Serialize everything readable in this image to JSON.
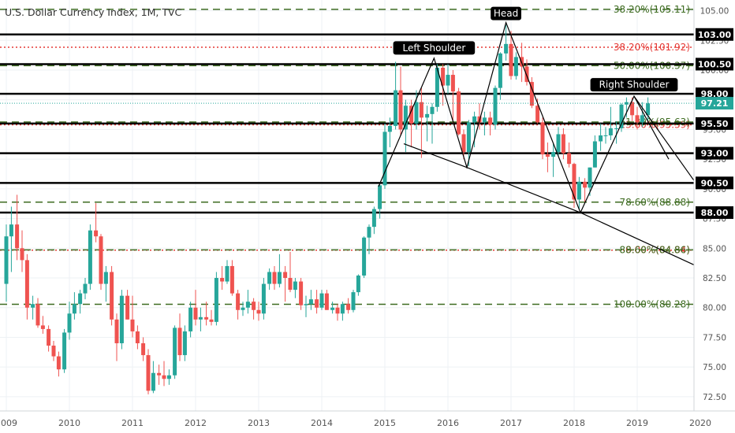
{
  "header": {
    "title": "U.S. Dollar Currency Index, 1M, TVC"
  },
  "chart_data": {
    "type": "candlestick",
    "title": "U.S. Dollar Currency Index, 1M, TVC",
    "x_range": [
      2009.0,
      2020.0
    ],
    "ylim": [
      71.3,
      105.9
    ],
    "x_ticks": [
      "2009",
      "2010",
      "2011",
      "2012",
      "2013",
      "2014",
      "2015",
      "2016",
      "2017",
      "2018",
      "2019",
      "2020"
    ],
    "y_ticks": [
      "72.50",
      "75.00",
      "77.50",
      "80.00",
      "82.50",
      "85.00",
      "87.50",
      "90.00",
      "92.50",
      "95.00",
      "97.50",
      "100.00",
      "102.50",
      "105.00"
    ],
    "current_price": "97.21",
    "colors": {
      "up": "#26a69a",
      "down": "#ef5350",
      "fib_green": "#3d6b20",
      "fib_red": "#e53935",
      "price_badge": "#26a69a",
      "level_badge": "#000000"
    },
    "levels": [
      {
        "label": "103.00",
        "value": 103.0
      },
      {
        "label": "100.50",
        "value": 100.5
      },
      {
        "label": "98.00",
        "value": 98.0
      },
      {
        "label": "95.50",
        "value": 95.5
      },
      {
        "label": "93.00",
        "value": 93.0
      },
      {
        "label": "90.50",
        "value": 90.5
      },
      {
        "label": "88.00",
        "value": 88.0
      }
    ],
    "fib_levels": [
      {
        "label": "38.20%(105.11)",
        "value": 105.11,
        "color": "green",
        "style": "dashed"
      },
      {
        "label": "38.20%(101.92)",
        "value": 101.92,
        "color": "red",
        "style": "dotted"
      },
      {
        "label": "50.00%(100.37)",
        "value": 100.37,
        "color": "green",
        "style": "dashed"
      },
      {
        "label": "23.60%(95.39)",
        "value": 95.39,
        "color": "red",
        "style": "dotted"
      },
      {
        "label": "61.80%(95.63)",
        "value": 95.63,
        "color": "green",
        "style": "dashed"
      },
      {
        "label": "78.60%(88.88)",
        "value": 88.88,
        "color": "green",
        "style": "dashed"
      },
      {
        "label": "0.00%(84.84)",
        "value": 84.84,
        "color": "red",
        "style": "dotted"
      },
      {
        "label": "88.60%(84.86)",
        "value": 84.86,
        "color": "green",
        "style": "dashed"
      },
      {
        "label": "100.00%(80.28)",
        "value": 80.28,
        "color": "green",
        "style": "dashed"
      }
    ],
    "annotations": [
      {
        "label": "Left Shoulder",
        "x": 2015.78,
        "y": 101.1
      },
      {
        "label": "Head",
        "x": 2016.92,
        "y": 104.0
      },
      {
        "label": "Right Shoulder",
        "x": 2018.95,
        "y": 98.0
      }
    ],
    "pattern_line": [
      [
        2014.9,
        90.2
      ],
      [
        2015.78,
        101.0
      ],
      [
        2016.3,
        91.8
      ],
      [
        2016.92,
        104.0
      ],
      [
        2018.1,
        88.0
      ],
      [
        2018.95,
        97.8
      ],
      [
        2019.5,
        92.5
      ]
    ],
    "neckline": [
      [
        2015.3,
        93.8
      ],
      [
        2016.3,
        91.8
      ],
      [
        2018.1,
        88.0
      ],
      [
        2020.0,
        83.6
      ]
    ],
    "right_line": [
      [
        2018.95,
        97.8
      ],
      [
        2020.0,
        90.7
      ]
    ],
    "candles": [
      {
        "t": 2009.0,
        "o": 82.0,
        "h": 87.0,
        "l": 80.5,
        "c": 86.0
      },
      {
        "t": 2009.08,
        "o": 86.0,
        "h": 88.5,
        "l": 83.0,
        "c": 87.0
      },
      {
        "t": 2009.17,
        "o": 87.0,
        "h": 89.5,
        "l": 84.0,
        "c": 85.0
      },
      {
        "t": 2009.25,
        "o": 85.0,
        "h": 86.5,
        "l": 83.0,
        "c": 84.0
      },
      {
        "t": 2009.33,
        "o": 84.0,
        "h": 84.5,
        "l": 79.0,
        "c": 80.0
      },
      {
        "t": 2009.42,
        "o": 80.0,
        "h": 81.0,
        "l": 79.0,
        "c": 80.3
      },
      {
        "t": 2009.5,
        "o": 80.3,
        "h": 80.8,
        "l": 78.3,
        "c": 78.5
      },
      {
        "t": 2009.58,
        "o": 78.5,
        "h": 79.3,
        "l": 77.8,
        "c": 78.2
      },
      {
        "t": 2009.67,
        "o": 78.2,
        "h": 78.5,
        "l": 76.3,
        "c": 76.8
      },
      {
        "t": 2009.75,
        "o": 76.8,
        "h": 77.2,
        "l": 75.5,
        "c": 75.9
      },
      {
        "t": 2009.83,
        "o": 75.9,
        "h": 76.3,
        "l": 74.2,
        "c": 74.8
      },
      {
        "t": 2009.92,
        "o": 74.8,
        "h": 78.2,
        "l": 74.5,
        "c": 77.9
      },
      {
        "t": 2010.0,
        "o": 77.9,
        "h": 80.5,
        "l": 77.3,
        "c": 79.5
      },
      {
        "t": 2010.08,
        "o": 79.5,
        "h": 81.3,
        "l": 79.0,
        "c": 80.3
      },
      {
        "t": 2010.17,
        "o": 80.3,
        "h": 81.5,
        "l": 79.5,
        "c": 81.2
      },
      {
        "t": 2010.25,
        "o": 81.2,
        "h": 82.5,
        "l": 80.7,
        "c": 82.0
      },
      {
        "t": 2010.33,
        "o": 82.0,
        "h": 87.0,
        "l": 81.5,
        "c": 86.5
      },
      {
        "t": 2010.42,
        "o": 86.5,
        "h": 88.8,
        "l": 85.5,
        "c": 86.0
      },
      {
        "t": 2010.5,
        "o": 86.0,
        "h": 86.2,
        "l": 81.5,
        "c": 82.0
      },
      {
        "t": 2010.58,
        "o": 82.0,
        "h": 83.5,
        "l": 80.5,
        "c": 83.0
      },
      {
        "t": 2010.67,
        "o": 83.0,
        "h": 83.5,
        "l": 78.5,
        "c": 79.0
      },
      {
        "t": 2010.75,
        "o": 79.0,
        "h": 79.5,
        "l": 75.5,
        "c": 77.0
      },
      {
        "t": 2010.83,
        "o": 77.0,
        "h": 81.5,
        "l": 76.5,
        "c": 81.0
      },
      {
        "t": 2010.92,
        "o": 81.0,
        "h": 81.5,
        "l": 79.0,
        "c": 79.0
      },
      {
        "t": 2011.0,
        "o": 79.0,
        "h": 81.0,
        "l": 77.5,
        "c": 78.0
      },
      {
        "t": 2011.08,
        "o": 78.0,
        "h": 78.5,
        "l": 76.5,
        "c": 77.0
      },
      {
        "t": 2011.17,
        "o": 77.0,
        "h": 77.5,
        "l": 75.5,
        "c": 76.0
      },
      {
        "t": 2011.25,
        "o": 76.0,
        "h": 76.5,
        "l": 72.7,
        "c": 73.0
      },
      {
        "t": 2011.33,
        "o": 73.0,
        "h": 75.5,
        "l": 72.8,
        "c": 74.5
      },
      {
        "t": 2011.42,
        "o": 74.5,
        "h": 75.2,
        "l": 73.5,
        "c": 74.3
      },
      {
        "t": 2011.5,
        "o": 74.3,
        "h": 75.5,
        "l": 73.4,
        "c": 74.0
      },
      {
        "t": 2011.58,
        "o": 74.0,
        "h": 74.8,
        "l": 73.5,
        "c": 74.3
      },
      {
        "t": 2011.67,
        "o": 74.3,
        "h": 78.5,
        "l": 74.0,
        "c": 78.3
      },
      {
        "t": 2011.75,
        "o": 78.3,
        "h": 79.5,
        "l": 75.5,
        "c": 76.0
      },
      {
        "t": 2011.83,
        "o": 76.0,
        "h": 78.5,
        "l": 75.5,
        "c": 78.0
      },
      {
        "t": 2011.92,
        "o": 78.0,
        "h": 80.5,
        "l": 77.5,
        "c": 80.0
      },
      {
        "t": 2012.0,
        "o": 80.0,
        "h": 81.5,
        "l": 78.5,
        "c": 79.0
      },
      {
        "t": 2012.08,
        "o": 79.0,
        "h": 80.0,
        "l": 78.0,
        "c": 79.2
      },
      {
        "t": 2012.17,
        "o": 79.2,
        "h": 80.5,
        "l": 78.5,
        "c": 79.0
      },
      {
        "t": 2012.25,
        "o": 79.0,
        "h": 79.8,
        "l": 78.5,
        "c": 78.8
      },
      {
        "t": 2012.33,
        "o": 78.8,
        "h": 83.0,
        "l": 78.5,
        "c": 82.5
      },
      {
        "t": 2012.42,
        "o": 82.5,
        "h": 83.5,
        "l": 81.5,
        "c": 82.2
      },
      {
        "t": 2012.5,
        "o": 82.2,
        "h": 84.0,
        "l": 82.0,
        "c": 83.5
      },
      {
        "t": 2012.58,
        "o": 83.5,
        "h": 84.0,
        "l": 81.0,
        "c": 81.2
      },
      {
        "t": 2012.67,
        "o": 81.2,
        "h": 81.5,
        "l": 79.0,
        "c": 79.8
      },
      {
        "t": 2012.75,
        "o": 79.8,
        "h": 80.5,
        "l": 79.3,
        "c": 80.0
      },
      {
        "t": 2012.83,
        "o": 80.0,
        "h": 81.5,
        "l": 79.5,
        "c": 80.5
      },
      {
        "t": 2012.92,
        "o": 80.5,
        "h": 80.8,
        "l": 79.0,
        "c": 79.8
      },
      {
        "t": 2013.0,
        "o": 79.8,
        "h": 80.5,
        "l": 78.9,
        "c": 79.5
      },
      {
        "t": 2013.08,
        "o": 79.5,
        "h": 82.5,
        "l": 79.0,
        "c": 82.0
      },
      {
        "t": 2013.17,
        "o": 82.0,
        "h": 83.3,
        "l": 81.5,
        "c": 83.0
      },
      {
        "t": 2013.25,
        "o": 83.0,
        "h": 83.5,
        "l": 81.5,
        "c": 82.0
      },
      {
        "t": 2013.33,
        "o": 82.0,
        "h": 84.5,
        "l": 81.7,
        "c": 83.0
      },
      {
        "t": 2013.42,
        "o": 83.0,
        "h": 83.5,
        "l": 80.5,
        "c": 82.5
      },
      {
        "t": 2013.5,
        "o": 82.5,
        "h": 84.7,
        "l": 81.3,
        "c": 81.5
      },
      {
        "t": 2013.58,
        "o": 81.5,
        "h": 82.5,
        "l": 80.8,
        "c": 82.2
      },
      {
        "t": 2013.67,
        "o": 82.2,
        "h": 82.5,
        "l": 79.8,
        "c": 80.2
      },
      {
        "t": 2013.75,
        "o": 80.2,
        "h": 81.0,
        "l": 79.2,
        "c": 80.3
      },
      {
        "t": 2013.83,
        "o": 80.3,
        "h": 81.5,
        "l": 79.8,
        "c": 80.7
      },
      {
        "t": 2013.92,
        "o": 80.7,
        "h": 81.5,
        "l": 79.5,
        "c": 80.0
      },
      {
        "t": 2014.0,
        "o": 80.0,
        "h": 81.5,
        "l": 79.8,
        "c": 81.2
      },
      {
        "t": 2014.08,
        "o": 81.2,
        "h": 81.5,
        "l": 79.8,
        "c": 79.8
      },
      {
        "t": 2014.17,
        "o": 79.8,
        "h": 80.5,
        "l": 79.5,
        "c": 80.0
      },
      {
        "t": 2014.25,
        "o": 80.0,
        "h": 80.3,
        "l": 78.9,
        "c": 79.5
      },
      {
        "t": 2014.33,
        "o": 79.5,
        "h": 80.5,
        "l": 78.9,
        "c": 80.3
      },
      {
        "t": 2014.42,
        "o": 80.3,
        "h": 80.8,
        "l": 79.5,
        "c": 79.8
      },
      {
        "t": 2014.5,
        "o": 79.8,
        "h": 81.5,
        "l": 79.6,
        "c": 81.3
      },
      {
        "t": 2014.58,
        "o": 81.3,
        "h": 82.8,
        "l": 81.0,
        "c": 82.7
      },
      {
        "t": 2014.67,
        "o": 82.7,
        "h": 86.0,
        "l": 82.5,
        "c": 85.9
      },
      {
        "t": 2014.75,
        "o": 85.9,
        "h": 87.0,
        "l": 84.5,
        "c": 86.8
      },
      {
        "t": 2014.83,
        "o": 86.8,
        "h": 88.5,
        "l": 86.2,
        "c": 88.3
      },
      {
        "t": 2014.92,
        "o": 88.3,
        "h": 90.5,
        "l": 87.5,
        "c": 90.3
      },
      {
        "t": 2015.0,
        "o": 90.3,
        "h": 95.5,
        "l": 90.0,
        "c": 94.8
      },
      {
        "t": 2015.08,
        "o": 94.8,
        "h": 96.0,
        "l": 93.5,
        "c": 95.3
      },
      {
        "t": 2015.17,
        "o": 95.3,
        "h": 100.7,
        "l": 95.0,
        "c": 98.3
      },
      {
        "t": 2015.25,
        "o": 98.3,
        "h": 100.3,
        "l": 94.5,
        "c": 95.0
      },
      {
        "t": 2015.33,
        "o": 95.0,
        "h": 97.5,
        "l": 93.1,
        "c": 97.0
      },
      {
        "t": 2015.42,
        "o": 97.0,
        "h": 97.5,
        "l": 93.5,
        "c": 95.5
      },
      {
        "t": 2015.5,
        "o": 95.5,
        "h": 98.3,
        "l": 95.0,
        "c": 97.3
      },
      {
        "t": 2015.58,
        "o": 97.3,
        "h": 98.5,
        "l": 92.6,
        "c": 96.0
      },
      {
        "t": 2015.67,
        "o": 96.0,
        "h": 97.0,
        "l": 94.0,
        "c": 96.3
      },
      {
        "t": 2015.75,
        "o": 96.3,
        "h": 97.2,
        "l": 93.8,
        "c": 96.9
      },
      {
        "t": 2015.83,
        "o": 96.9,
        "h": 100.5,
        "l": 96.5,
        "c": 100.2
      },
      {
        "t": 2015.92,
        "o": 100.2,
        "h": 100.5,
        "l": 97.0,
        "c": 98.7
      },
      {
        "t": 2016.0,
        "o": 98.7,
        "h": 100.5,
        "l": 98.0,
        "c": 99.6
      },
      {
        "t": 2016.08,
        "o": 99.6,
        "h": 100.0,
        "l": 95.5,
        "c": 98.2
      },
      {
        "t": 2016.17,
        "o": 98.2,
        "h": 98.5,
        "l": 94.5,
        "c": 94.6
      },
      {
        "t": 2016.25,
        "o": 94.6,
        "h": 95.0,
        "l": 92.5,
        "c": 93.1
      },
      {
        "t": 2016.33,
        "o": 93.1,
        "h": 95.8,
        "l": 91.9,
        "c": 95.6
      },
      {
        "t": 2016.42,
        "o": 95.6,
        "h": 96.5,
        "l": 93.5,
        "c": 96.1
      },
      {
        "t": 2016.5,
        "o": 96.1,
        "h": 97.2,
        "l": 95.0,
        "c": 95.6
      },
      {
        "t": 2016.58,
        "o": 95.6,
        "h": 96.5,
        "l": 94.5,
        "c": 96.0
      },
      {
        "t": 2016.67,
        "o": 96.0,
        "h": 96.5,
        "l": 94.5,
        "c": 95.4
      },
      {
        "t": 2016.75,
        "o": 95.4,
        "h": 98.7,
        "l": 95.0,
        "c": 98.5
      },
      {
        "t": 2016.83,
        "o": 98.5,
        "h": 101.5,
        "l": 97.5,
        "c": 101.4
      },
      {
        "t": 2016.92,
        "o": 101.4,
        "h": 103.8,
        "l": 100.8,
        "c": 102.2
      },
      {
        "t": 2017.0,
        "o": 102.2,
        "h": 103.3,
        "l": 99.2,
        "c": 99.5
      },
      {
        "t": 2017.08,
        "o": 99.5,
        "h": 101.5,
        "l": 99.2,
        "c": 101.1
      },
      {
        "t": 2017.17,
        "o": 101.1,
        "h": 102.3,
        "l": 99.0,
        "c": 100.3
      },
      {
        "t": 2017.25,
        "o": 100.3,
        "h": 100.9,
        "l": 98.7,
        "c": 99.0
      },
      {
        "t": 2017.33,
        "o": 99.0,
        "h": 99.4,
        "l": 96.8,
        "c": 97.0
      },
      {
        "t": 2017.42,
        "o": 97.0,
        "h": 97.6,
        "l": 95.5,
        "c": 95.6
      },
      {
        "t": 2017.5,
        "o": 95.6,
        "h": 96.0,
        "l": 92.5,
        "c": 92.9
      },
      {
        "t": 2017.58,
        "o": 92.9,
        "h": 93.9,
        "l": 91.4,
        "c": 92.7
      },
      {
        "t": 2017.67,
        "o": 92.7,
        "h": 93.8,
        "l": 91.0,
        "c": 93.1
      },
      {
        "t": 2017.75,
        "o": 93.1,
        "h": 95.2,
        "l": 92.8,
        "c": 94.6
      },
      {
        "t": 2017.83,
        "o": 94.6,
        "h": 95.1,
        "l": 92.5,
        "c": 93.0
      },
      {
        "t": 2017.92,
        "o": 93.0,
        "h": 93.9,
        "l": 91.8,
        "c": 92.1
      },
      {
        "t": 2018.0,
        "o": 92.1,
        "h": 92.2,
        "l": 88.4,
        "c": 89.1
      },
      {
        "t": 2018.08,
        "o": 89.1,
        "h": 91.0,
        "l": 88.3,
        "c": 90.6
      },
      {
        "t": 2018.17,
        "o": 90.6,
        "h": 90.9,
        "l": 88.9,
        "c": 90.1
      },
      {
        "t": 2018.25,
        "o": 90.1,
        "h": 91.8,
        "l": 89.4,
        "c": 91.8
      },
      {
        "t": 2018.33,
        "o": 91.8,
        "h": 94.5,
        "l": 91.8,
        "c": 94.0
      },
      {
        "t": 2018.42,
        "o": 94.0,
        "h": 95.5,
        "l": 93.2,
        "c": 94.5
      },
      {
        "t": 2018.5,
        "o": 94.5,
        "h": 95.2,
        "l": 93.8,
        "c": 94.5
      },
      {
        "t": 2018.58,
        "o": 94.5,
        "h": 96.9,
        "l": 94.1,
        "c": 95.1
      },
      {
        "t": 2018.67,
        "o": 95.1,
        "h": 95.7,
        "l": 93.8,
        "c": 95.1
      },
      {
        "t": 2018.75,
        "o": 95.1,
        "h": 97.2,
        "l": 94.8,
        "c": 97.1
      },
      {
        "t": 2018.83,
        "o": 97.1,
        "h": 97.7,
        "l": 96.0,
        "c": 97.3
      },
      {
        "t": 2018.92,
        "o": 97.3,
        "h": 97.7,
        "l": 95.7,
        "c": 96.2
      },
      {
        "t": 2019.0,
        "o": 96.2,
        "h": 96.9,
        "l": 95.0,
        "c": 95.6
      },
      {
        "t": 2019.08,
        "o": 95.6,
        "h": 97.3,
        "l": 95.2,
        "c": 96.2
      },
      {
        "t": 2019.17,
        "o": 96.2,
        "h": 97.7,
        "l": 95.8,
        "c": 97.2
      }
    ]
  }
}
